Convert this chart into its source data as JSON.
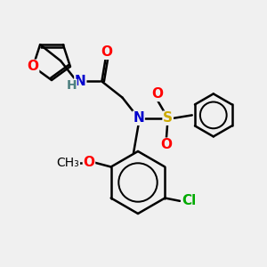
{
  "bg_color": "#f0f0f0",
  "bond_color": "#000000",
  "bond_width": 1.8,
  "atom_colors": {
    "O": "#ff0000",
    "N": "#0000cd",
    "S": "#ccaa00",
    "Cl": "#00aa00",
    "H": "#4d8080",
    "C": "#000000"
  },
  "font_size_atom": 11,
  "font_size_small": 9
}
